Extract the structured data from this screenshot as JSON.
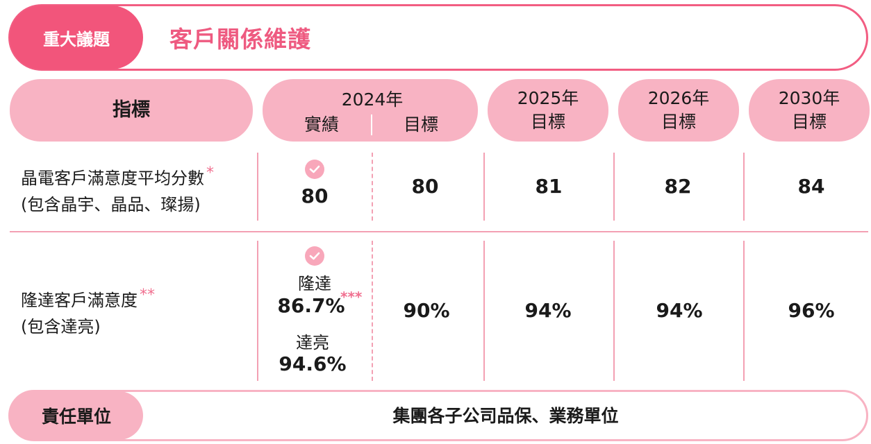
{
  "header": {
    "topic_label": "重大議題",
    "title": "客戶關係維護"
  },
  "columns": {
    "indicator": "指標",
    "y2024": {
      "year": "2024年",
      "actual": "實績",
      "target": "目標"
    },
    "y2025": {
      "year": "2025年",
      "sub": "目標"
    },
    "y2026": {
      "year": "2026年",
      "sub": "目標"
    },
    "y2030": {
      "year": "2030年",
      "sub": "目標"
    }
  },
  "rows": [
    {
      "line1": "晶電客戶滿意度平均分數",
      "star": "*",
      "line2": "(包含晶宇、晶品、璨揚)",
      "actual": "80",
      "t2024": "80",
      "t2025": "81",
      "t2026": "82",
      "t2030": "84"
    },
    {
      "line1": "隆達客戶滿意度",
      "star": "**",
      "line2": "(包含達亮)",
      "actual_a_name": "隆達",
      "actual_a_value": "86.7%",
      "actual_a_star": "***",
      "actual_b_name": "達亮",
      "actual_b_value": "94.6%",
      "t2024": "90%",
      "t2025": "94%",
      "t2026": "94%",
      "t2030": "96%"
    }
  ],
  "responsibility": {
    "label": "責任單位",
    "value": "集團各子公司品保、業務單位"
  },
  "icons": {
    "achieved": "check-circle-icon"
  },
  "colors": {
    "accent": "#f2557b",
    "pill": "#f8b3c3",
    "line": "#f3a0b3"
  }
}
